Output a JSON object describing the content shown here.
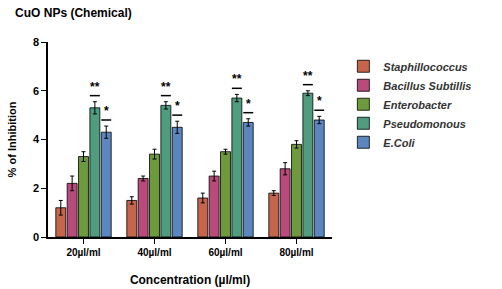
{
  "chart_data": {
    "type": "bar",
    "title": "CuO NPs (Chemical)",
    "x_label": "Concentration (µl/ml)",
    "y_label": "% of Inhibition",
    "categories": [
      "20µl/ml",
      "40µl/ml",
      "60µl/ml",
      "80µl/ml"
    ],
    "series": [
      {
        "name": "Staphillococcus",
        "color": "#c4654c",
        "values": [
          1.2,
          1.5,
          1.6,
          1.8
        ],
        "error": [
          0.3,
          0.15,
          0.2,
          0.1
        ]
      },
      {
        "name": "Bacillus Subtillis",
        "color": "#b84a7c",
        "values": [
          2.2,
          2.4,
          2.5,
          2.8
        ],
        "error": [
          0.3,
          0.1,
          0.2,
          0.25
        ]
      },
      {
        "name": "Enterobacter",
        "color": "#6c9a3c",
        "values": [
          3.3,
          3.4,
          3.5,
          3.8
        ],
        "error": [
          0.2,
          0.2,
          0.1,
          0.15
        ]
      },
      {
        "name": "Pseudomonous",
        "color": "#4f9c7e",
        "values": [
          5.3,
          5.4,
          5.7,
          5.9
        ],
        "error": [
          0.25,
          0.15,
          0.15,
          0.1
        ]
      },
      {
        "name": "E.Coli",
        "color": "#5b86bf",
        "values": [
          4.3,
          4.5,
          4.7,
          4.8
        ],
        "error": [
          0.25,
          0.25,
          0.15,
          0.15
        ]
      }
    ],
    "annotations": [
      {
        "text": "**",
        "series": "Pseudomonous"
      },
      {
        "text": "*",
        "series": "E.Coli"
      }
    ],
    "ylim": [
      0,
      8
    ],
    "yticks": [
      0,
      2,
      4,
      6,
      8
    ],
    "grid": false,
    "legend": "right"
  }
}
